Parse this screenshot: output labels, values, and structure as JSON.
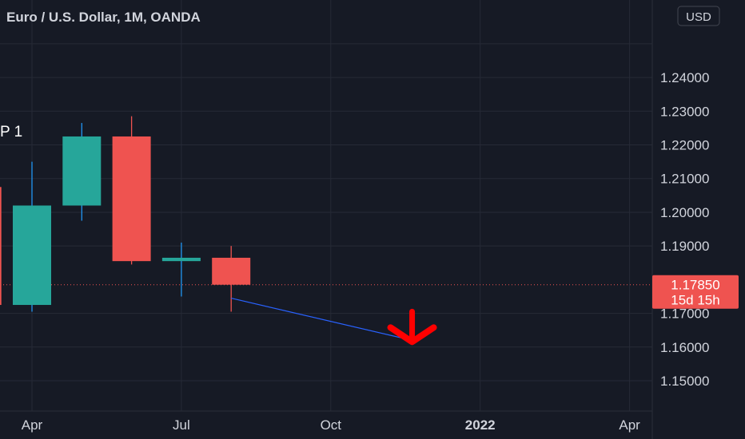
{
  "header": {
    "title": "Euro / U.S. Dollar, 1M, OANDA",
    "currency_button": "USD",
    "partial_label": "P 1"
  },
  "colors": {
    "background": "#161a25",
    "up": "#26a69a",
    "down": "#ef5350",
    "wick_up": "#2196f3",
    "trendline": "#2962ff",
    "arrow": "#ff0000",
    "grid": "#262a36",
    "text": "#d1d4dc"
  },
  "chart_data": {
    "type": "candlestick",
    "title": "Euro / U.S. Dollar, 1M, OANDA",
    "ylim": [
      1.141,
      1.263
    ],
    "yticks": [
      "1.15000",
      "1.16000",
      "1.17000",
      "1.19000",
      "1.20000",
      "1.21000",
      "1.22000",
      "1.23000",
      "1.24000"
    ],
    "xticks": [
      {
        "label": "Apr",
        "date": "2021-04",
        "bold": false
      },
      {
        "label": "Jul",
        "date": "2021-07",
        "bold": false
      },
      {
        "label": "Oct",
        "date": "2021-10",
        "bold": false
      },
      {
        "label": "2022",
        "date": "2022-01",
        "bold": true
      },
      {
        "label": "Apr",
        "date": "2022-04",
        "bold": false
      }
    ],
    "grid": true,
    "candles": [
      {
        "date": "2021-03",
        "open": 1.2075,
        "high": 1.2075,
        "low": 1.1725,
        "close": 1.1725
      },
      {
        "date": "2021-04",
        "open": 1.1725,
        "high": 1.215,
        "low": 1.1705,
        "close": 1.202
      },
      {
        "date": "2021-05",
        "open": 1.202,
        "high": 1.2265,
        "low": 1.1975,
        "close": 1.2225
      },
      {
        "date": "2021-06",
        "open": 1.2225,
        "high": 1.2285,
        "low": 1.1845,
        "close": 1.1855
      },
      {
        "date": "2021-07",
        "open": 1.1855,
        "high": 1.191,
        "low": 1.175,
        "close": 1.1865
      },
      {
        "date": "2021-08",
        "open": 1.1865,
        "high": 1.19,
        "low": 1.1705,
        "close": 1.1785
      }
    ],
    "last_price": {
      "value": 1.1785,
      "label": "1.17850",
      "countdown": "15d 15h"
    },
    "annotations": [
      {
        "type": "trendline",
        "from": {
          "date": "2021-08",
          "price": 1.1745
        },
        "to": {
          "date": "2021-11-20",
          "price": 1.162
        }
      },
      {
        "type": "arrow-down",
        "date": "2021-11-20",
        "price": 1.162
      }
    ]
  }
}
